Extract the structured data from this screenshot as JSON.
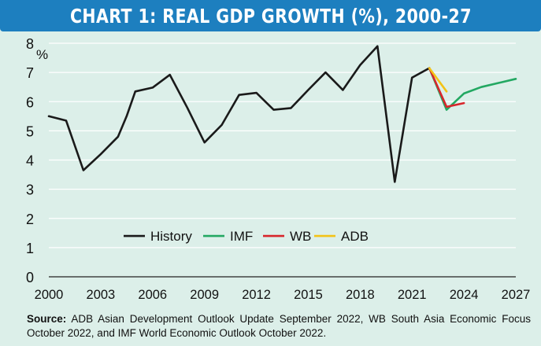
{
  "title": "CHART 1: REAL GDP GROWTH (%), 2000-27",
  "source": {
    "label": "Source:",
    "text": "ADB Asian Development Outlook Update September 2022, WB South Asia Economic Focus October 2022, and IMF World Economic Outlook October 2022."
  },
  "chart_data": {
    "type": "line",
    "ylabel": "%",
    "xlabel": "",
    "xlim": [
      2000,
      2027
    ],
    "ylim": [
      0,
      8
    ],
    "xticks": [
      2000,
      2003,
      2006,
      2009,
      2012,
      2015,
      2018,
      2021,
      2024,
      2027
    ],
    "yticks": [
      0,
      1,
      2,
      3,
      4,
      5,
      6,
      7,
      8
    ],
    "grid": true,
    "legend_position": "center",
    "series": [
      {
        "name": "History",
        "color": "#1a1a1a",
        "x": [
          2000,
          2001,
          2002,
          2003,
          2004,
          2004.5,
          2005,
          2006,
          2007,
          2008,
          2009,
          2010,
          2011,
          2012,
          2013,
          2014,
          2015,
          2016,
          2017,
          2018,
          2019,
          2020,
          2021,
          2022
        ],
        "y": [
          5.5,
          5.35,
          3.65,
          4.2,
          4.8,
          5.5,
          6.35,
          6.48,
          6.92,
          5.8,
          4.6,
          5.2,
          6.23,
          6.3,
          5.72,
          5.78,
          6.4,
          7.0,
          6.4,
          7.25,
          7.9,
          3.25,
          6.82,
          7.15
        ]
      },
      {
        "name": "IMF",
        "color": "#23a862",
        "x": [
          2022,
          2023,
          2024,
          2025,
          2026,
          2027
        ],
        "y": [
          7.15,
          5.72,
          6.28,
          6.5,
          6.64,
          6.78
        ]
      },
      {
        "name": "WB",
        "color": "#d8262b",
        "x": [
          2022,
          2023,
          2024
        ],
        "y": [
          7.15,
          5.82,
          5.95
        ]
      },
      {
        "name": "ADB",
        "color": "#f3c316",
        "x": [
          2022,
          2023
        ],
        "y": [
          7.15,
          6.35
        ]
      }
    ]
  }
}
